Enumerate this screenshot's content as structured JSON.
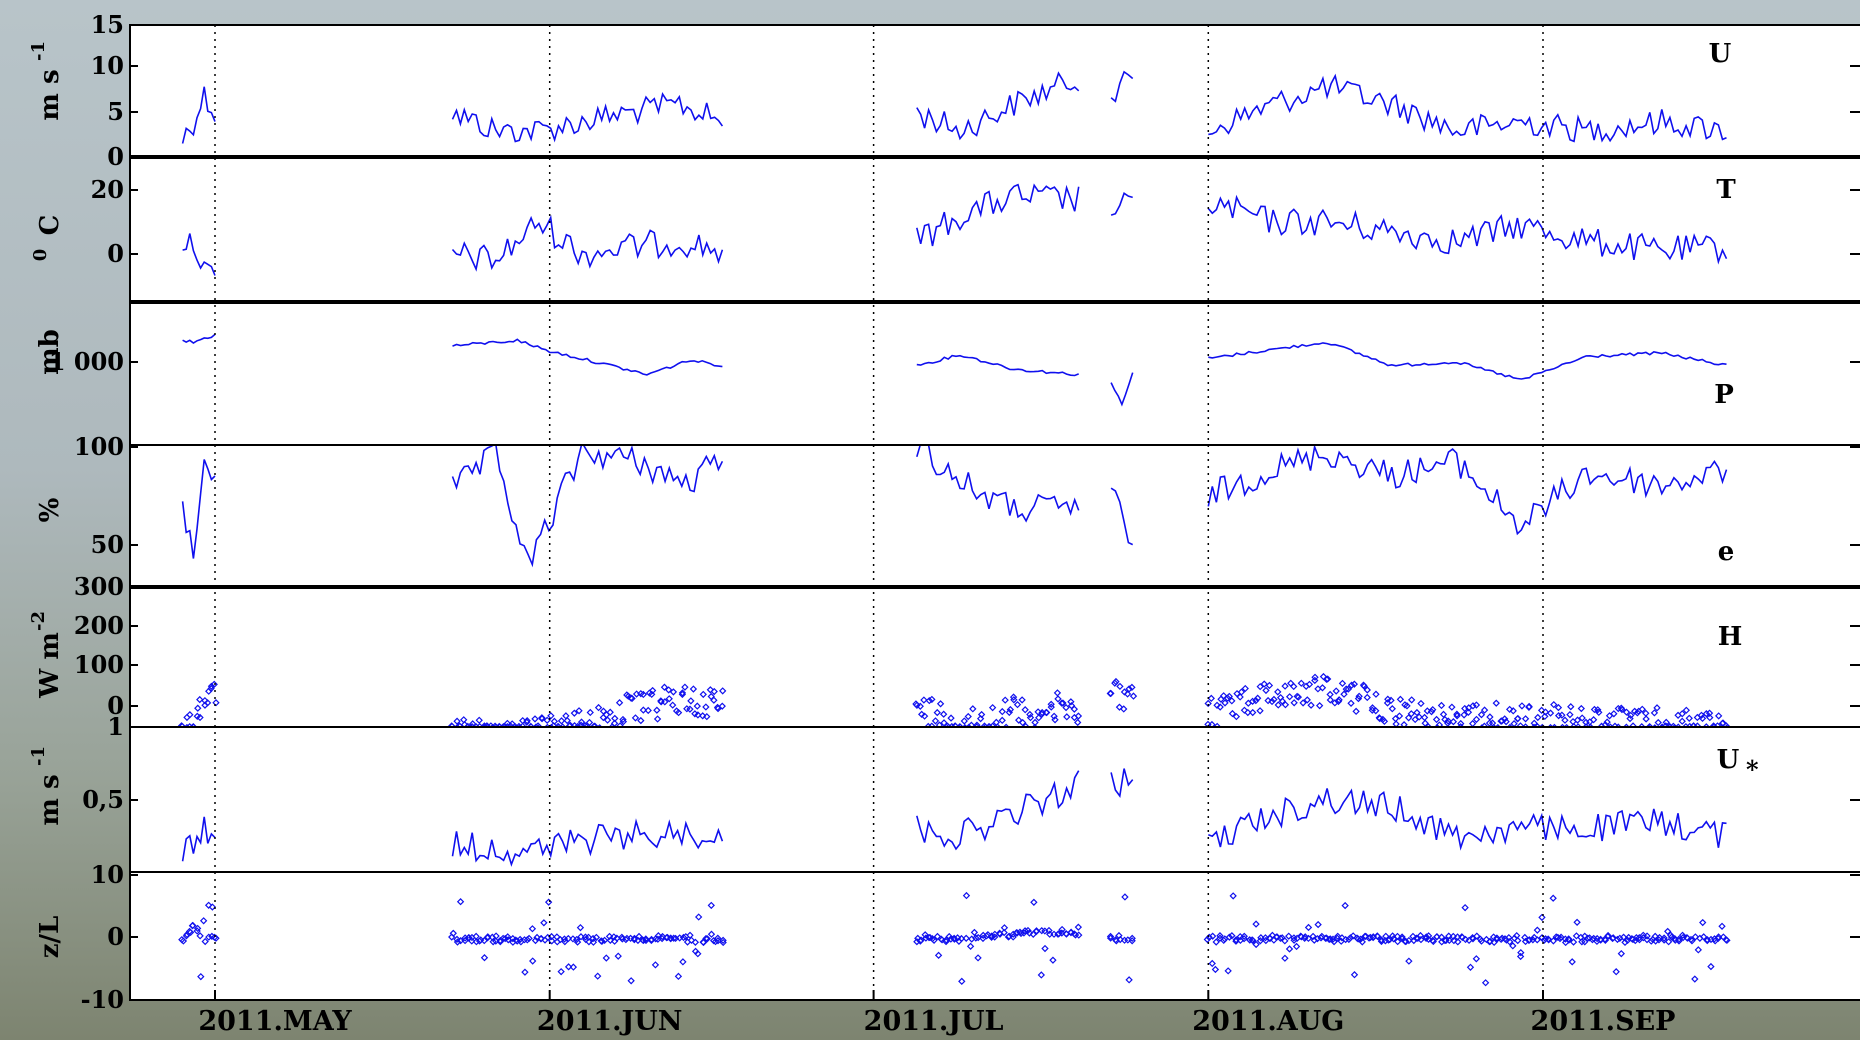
{
  "chart_data": {
    "type": "line",
    "x_axis": {
      "ticks": [
        "2011.MAY",
        "2011.JUN",
        "2011.JUL",
        "2011.AUG",
        "2011.SEP"
      ],
      "range": [
        "2011-04-28",
        "2011-10-06"
      ]
    },
    "grid": "dotted vertical lines at month boundaries",
    "data_gaps": [
      [
        "2011-05-01",
        "2011-05-23"
      ],
      [
        "2011-06-18",
        "2011-07-05"
      ],
      [
        "2011-07-21",
        "2011-07-23"
      ],
      [
        "2011-07-25",
        "2011-08-01"
      ],
      [
        "2011-09-19",
        "2011-10-05"
      ]
    ],
    "panels": [
      {
        "id": "U",
        "label": "U",
        "ylabel": "m s",
        "ylabel_exponent": "-1",
        "yticks": [
          "15",
          "10",
          "5",
          "0"
        ],
        "ylim": [
          0,
          15
        ],
        "style": "line",
        "series": [
          {
            "segment": 1,
            "x": [
              "2011-04-28",
              "2011-04-29",
              "2011-04-30",
              "2011-05-01"
            ],
            "y": [
              2,
              4,
              7,
              5
            ]
          },
          {
            "segment": 2,
            "x": [
              "2011-05-23",
              "2011-05-27",
              "2011-05-31",
              "2011-06-04",
              "2011-06-08",
              "2011-06-13",
              "2011-06-17"
            ],
            "y": [
              5,
              3,
              3,
              4,
              5,
              6,
              4
            ]
          },
          {
            "segment": 3,
            "x": [
              "2011-07-05",
              "2011-07-09",
              "2011-07-14",
              "2011-07-20"
            ],
            "y": [
              5,
              3,
              6,
              9
            ]
          },
          {
            "segment": 4,
            "x": [
              "2011-07-23",
              "2011-07-25"
            ],
            "y": [
              7,
              9
            ]
          },
          {
            "segment": 5,
            "x": [
              "2011-08-01",
              "2011-08-07",
              "2011-08-12",
              "2011-08-18",
              "2011-08-24",
              "2011-08-30",
              "2011-09-05",
              "2011-09-12",
              "2011-09-18"
            ],
            "y": [
              3,
              6,
              8,
              6,
              3,
              4,
              3,
              4,
              3
            ]
          }
        ]
      },
      {
        "id": "T",
        "label": "T",
        "ylabel": "C",
        "ylabel_prefix": "0",
        "yticks": [
          "20",
          "0"
        ],
        "ylim": [
          -15,
          25
        ],
        "style": "line",
        "series": [
          {
            "segment": 1,
            "x": [
              "2011-04-28",
              "2011-04-29",
              "2011-04-30",
              "2011-05-01"
            ],
            "y": [
              3,
              4,
              -5,
              -9
            ]
          },
          {
            "segment": 2,
            "x": [
              "2011-05-23",
              "2011-05-27",
              "2011-05-31",
              "2011-06-04",
              "2011-06-08",
              "2011-06-13",
              "2011-06-17"
            ],
            "y": [
              0,
              -2,
              10,
              0,
              2,
              4,
              1
            ]
          },
          {
            "segment": 3,
            "x": [
              "2011-07-05",
              "2011-07-09",
              "2011-07-14",
              "2011-07-20"
            ],
            "y": [
              4,
              12,
              18,
              17
            ]
          },
          {
            "segment": 4,
            "x": [
              "2011-07-23",
              "2011-07-25"
            ],
            "y": [
              14,
              15
            ]
          },
          {
            "segment": 5,
            "x": [
              "2011-08-01",
              "2011-08-07",
              "2011-08-12",
              "2011-08-18",
              "2011-08-24",
              "2011-08-30",
              "2011-09-05",
              "2011-09-12",
              "2011-09-18"
            ],
            "y": [
              16,
              10,
              10,
              7,
              4,
              9,
              4,
              1,
              2
            ]
          }
        ]
      },
      {
        "id": "P",
        "label": "P",
        "ylabel": "mb",
        "yticks": [
          "1 000"
        ],
        "style": "line",
        "series": [
          {
            "segment": 1,
            "x": [
              "2011-04-28",
              "2011-04-29",
              "2011-04-30",
              "2011-05-01"
            ],
            "y": [
              1012,
              1011,
              1013,
              1015
            ]
          },
          {
            "segment": 2,
            "x": [
              "2011-05-23",
              "2011-05-29",
              "2011-06-01",
              "2011-06-06",
              "2011-06-10",
              "2011-06-14",
              "2011-06-17"
            ],
            "y": [
              1009,
              1012,
              1006,
              999,
              993,
              1001,
              998
            ]
          },
          {
            "segment": 3,
            "x": [
              "2011-07-05",
              "2011-07-09",
              "2011-07-14",
              "2011-07-20"
            ],
            "y": [
              998,
              1004,
              996,
              993
            ]
          },
          {
            "segment": 4,
            "x": [
              "2011-07-23",
              "2011-07-24",
              "2011-07-25"
            ],
            "y": [
              989,
              976,
              994
            ]
          },
          {
            "segment": 5,
            "x": [
              "2011-08-01",
              "2011-08-07",
              "2011-08-12",
              "2011-08-18",
              "2011-08-24",
              "2011-08-30",
              "2011-09-05",
              "2011-09-12",
              "2011-09-18"
            ],
            "y": [
              1002,
              1007,
              1011,
              998,
              1000,
              990,
              1003,
              1005,
              998
            ]
          }
        ]
      },
      {
        "id": "e",
        "label": "e",
        "ylabel": "%",
        "yticks": [
          "100",
          "50"
        ],
        "ylim": [
          30,
          100
        ],
        "style": "line",
        "series": [
          {
            "segment": 1,
            "x": [
              "2011-04-28",
              "2011-04-29",
              "2011-04-30",
              "2011-05-01"
            ],
            "y": [
              70,
              45,
              95,
              85
            ]
          },
          {
            "segment": 2,
            "x": [
              "2011-05-23",
              "2011-05-27",
              "2011-05-30",
              "2011-06-04",
              "2011-06-09",
              "2011-06-14",
              "2011-06-17"
            ],
            "y": [
              78,
              95,
              40,
              97,
              92,
              80,
              96
            ]
          },
          {
            "segment": 3,
            "x": [
              "2011-07-05",
              "2011-07-09",
              "2011-07-14",
              "2011-07-20"
            ],
            "y": [
              100,
              82,
              68,
              70
            ]
          },
          {
            "segment": 4,
            "x": [
              "2011-07-23",
              "2011-07-25"
            ],
            "y": [
              80,
              45
            ]
          },
          {
            "segment": 5,
            "x": [
              "2011-08-01",
              "2011-08-07",
              "2011-08-12",
              "2011-08-18",
              "2011-08-24",
              "2011-08-30",
              "2011-09-05",
              "2011-09-12",
              "2011-09-18"
            ],
            "y": [
              75,
              88,
              96,
              85,
              92,
              60,
              86,
              80,
              88
            ]
          }
        ]
      },
      {
        "id": "H",
        "label": "H",
        "ylabel": "W m",
        "ylabel_exponent": "-2",
        "yticks": [
          "300",
          "200",
          "100",
          "0"
        ],
        "ylim": [
          0,
          300
        ],
        "style": "scatter",
        "series": [
          {
            "segment": 1,
            "x": [
              "2011-04-28",
              "2011-04-29",
              "2011-04-30",
              "2011-05-01"
            ],
            "y": [
              0,
              30,
              60,
              80
            ]
          },
          {
            "segment": 2,
            "x": [
              "2011-05-23",
              "2011-05-27",
              "2011-05-31",
              "2011-06-04",
              "2011-06-09",
              "2011-06-14",
              "2011-06-17"
            ],
            "y": [
              20,
              5,
              5,
              30,
              60,
              80,
              70
            ]
          },
          {
            "segment": 3,
            "x": [
              "2011-07-05",
              "2011-07-09",
              "2011-07-14",
              "2011-07-20"
            ],
            "y": [
              60,
              30,
              50,
              60
            ]
          },
          {
            "segment": 4,
            "x": [
              "2011-07-23",
              "2011-07-25"
            ],
            "y": [
              100,
              80
            ]
          },
          {
            "segment": 5,
            "x": [
              "2011-08-01",
              "2011-08-07",
              "2011-08-12",
              "2011-08-18",
              "2011-08-24",
              "2011-08-30",
              "2011-09-05",
              "2011-09-12",
              "2011-09-18"
            ],
            "y": [
              50,
              90,
              100,
              60,
              30,
              40,
              30,
              25,
              20
            ]
          }
        ]
      },
      {
        "id": "Ustar",
        "label": "U",
        "label_subscript": "*",
        "ylabel": "m s",
        "ylabel_exponent": "-1",
        "yticks": [
          "1",
          "0,5"
        ],
        "ylim": [
          0,
          1
        ],
        "style": "line",
        "series": [
          {
            "segment": 1,
            "x": [
              "2011-04-28",
              "2011-04-29",
              "2011-04-30",
              "2011-05-01"
            ],
            "y": [
              0.12,
              0.2,
              0.3,
              0.2
            ]
          },
          {
            "segment": 2,
            "x": [
              "2011-05-23",
              "2011-05-27",
              "2011-05-31",
              "2011-06-04",
              "2011-06-09",
              "2011-06-14",
              "2011-06-17"
            ],
            "y": [
              0.2,
              0.15,
              0.15,
              0.22,
              0.25,
              0.27,
              0.25
            ]
          },
          {
            "segment": 3,
            "x": [
              "2011-07-05",
              "2011-07-09",
              "2011-07-14",
              "2011-07-20"
            ],
            "y": [
              0.3,
              0.25,
              0.4,
              0.6
            ]
          },
          {
            "segment": 4,
            "x": [
              "2011-07-23",
              "2011-07-25"
            ],
            "y": [
              0.6,
              0.65
            ]
          },
          {
            "segment": 5,
            "x": [
              "2011-08-01",
              "2011-08-07",
              "2011-08-12",
              "2011-08-18",
              "2011-08-24",
              "2011-08-30",
              "2011-09-05",
              "2011-09-12",
              "2011-09-18"
            ],
            "y": [
              0.2,
              0.4,
              0.5,
              0.45,
              0.25,
              0.3,
              0.3,
              0.35,
              0.25
            ]
          }
        ]
      },
      {
        "id": "zL",
        "label": "",
        "ylabel": "z/L",
        "yticks": [
          "10",
          "0",
          "-10"
        ],
        "ylim": [
          -10,
          10
        ],
        "style": "scatter",
        "series": [
          {
            "segment": 1,
            "x": [
              "2011-04-28",
              "2011-04-29",
              "2011-04-30",
              "2011-05-01"
            ],
            "y": [
              0,
              2,
              0,
              0
            ]
          },
          {
            "segment": 2,
            "x": [
              "2011-05-23",
              "2011-05-30",
              "2011-06-05",
              "2011-06-10",
              "2011-06-17"
            ],
            "y": [
              0,
              0,
              0,
              0,
              0
            ]
          },
          {
            "segment": 3,
            "x": [
              "2011-07-05",
              "2011-07-10",
              "2011-07-15",
              "2011-07-20"
            ],
            "y": [
              0,
              0,
              1,
              1
            ]
          },
          {
            "segment": 4,
            "x": [
              "2011-07-23",
              "2011-07-25"
            ],
            "y": [
              0,
              0
            ]
          },
          {
            "segment": 5,
            "x": [
              "2011-08-01",
              "2011-08-10",
              "2011-08-20",
              "2011-08-30",
              "2011-09-10",
              "2011-09-18"
            ],
            "y": [
              0,
              0,
              0,
              0,
              0,
              0
            ]
          }
        ]
      }
    ]
  }
}
